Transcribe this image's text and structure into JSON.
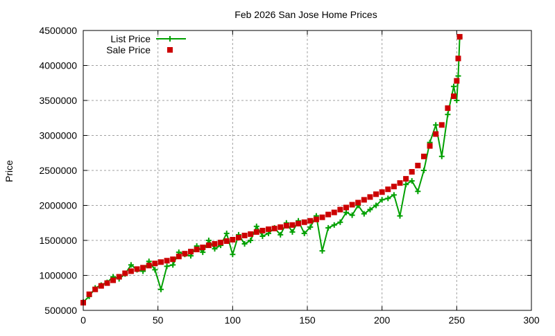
{
  "chart_data": {
    "type": "line",
    "title": "Feb 2026 San Jose Home Prices",
    "xlabel": "",
    "ylabel": "Price",
    "xlim": [
      0,
      300
    ],
    "ylim": [
      500000,
      4500000
    ],
    "xticks": [
      0,
      50,
      100,
      150,
      200,
      250,
      300
    ],
    "yticks": [
      500000,
      1000000,
      1500000,
      2000000,
      2500000,
      3000000,
      3500000,
      4000000,
      4500000
    ],
    "grid": true,
    "legend_placement": "top-left",
    "x": [
      0,
      4,
      8,
      12,
      16,
      20,
      24,
      28,
      32,
      36,
      40,
      44,
      48,
      52,
      56,
      60,
      64,
      68,
      72,
      76,
      80,
      84,
      88,
      92,
      96,
      100,
      104,
      108,
      112,
      116,
      120,
      124,
      128,
      132,
      136,
      140,
      144,
      148,
      152,
      156,
      160,
      164,
      168,
      172,
      176,
      180,
      184,
      188,
      192,
      196,
      200,
      204,
      208,
      212,
      216,
      220,
      224,
      228,
      232,
      236,
      240,
      244,
      248,
      250,
      251,
      252
    ],
    "series": [
      {
        "name": "List Price",
        "style": "linespoints",
        "marker": "plus",
        "color": "#00a000",
        "values": [
          620000,
          700000,
          820000,
          860000,
          900000,
          980000,
          950000,
          1020000,
          1150000,
          1080000,
          1060000,
          1200000,
          1080000,
          800000,
          1130000,
          1150000,
          1330000,
          1300000,
          1280000,
          1420000,
          1330000,
          1500000,
          1380000,
          1430000,
          1600000,
          1300000,
          1580000,
          1450000,
          1500000,
          1700000,
          1560000,
          1600000,
          1680000,
          1580000,
          1750000,
          1620000,
          1780000,
          1600000,
          1690000,
          1850000,
          1350000,
          1680000,
          1720000,
          1760000,
          1900000,
          1860000,
          2000000,
          1880000,
          1940000,
          2000000,
          2080000,
          2100000,
          2150000,
          1850000,
          2300000,
          2350000,
          2200000,
          2500000,
          2900000,
          3150000,
          2700000,
          3300000,
          3700000,
          3500000,
          3850000,
          4400000
        ]
      },
      {
        "name": "Sale Price",
        "style": "points",
        "marker": "square",
        "color": "#cc0000",
        "values": [
          610000,
          730000,
          800000,
          850000,
          890000,
          930000,
          980000,
          1030000,
          1060000,
          1090000,
          1110000,
          1140000,
          1170000,
          1190000,
          1210000,
          1230000,
          1270000,
          1310000,
          1340000,
          1370000,
          1400000,
          1430000,
          1450000,
          1470000,
          1490000,
          1510000,
          1540000,
          1570000,
          1590000,
          1620000,
          1640000,
          1660000,
          1670000,
          1690000,
          1710000,
          1720000,
          1740000,
          1760000,
          1780000,
          1800000,
          1830000,
          1870000,
          1900000,
          1940000,
          1970000,
          2010000,
          2040000,
          2080000,
          2120000,
          2160000,
          2190000,
          2230000,
          2270000,
          2320000,
          2380000,
          2480000,
          2570000,
          2700000,
          2850000,
          3020000,
          3150000,
          3390000,
          3560000,
          3780000,
          4100000,
          4410000
        ]
      }
    ]
  }
}
